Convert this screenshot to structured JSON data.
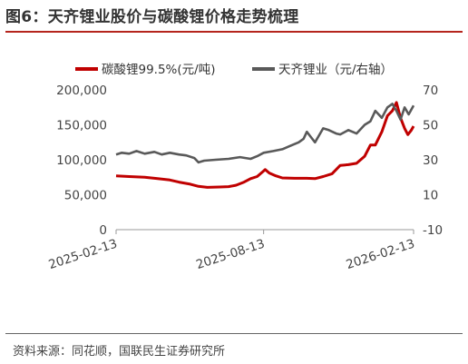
{
  "title": "图6：天齐锂业股价与碳酸锂价格走势梳理",
  "source": "资料来源：同花顺，国联民生证券研究所",
  "colors": {
    "series_red": "#c00000",
    "series_gray": "#595959",
    "accent_rule": "#b5251d"
  },
  "chart_data": {
    "type": "line",
    "x_ticks": [
      "2025-02-13",
      "2025-08-13",
      "2026-02-13"
    ],
    "x_range": [
      "2025-02-13",
      "2026-02-13"
    ],
    "y_left": {
      "ticks": [
        "200,000",
        "150,000",
        "100,000",
        "50,000",
        "0"
      ],
      "lim": [
        0,
        200000
      ]
    },
    "y_right": {
      "ticks": [
        "70",
        "50",
        "30",
        "10",
        "-10"
      ],
      "lim": [
        -10,
        70
      ]
    },
    "series": [
      {
        "name": "碳酸锂99.5%(元/吨)",
        "axis": "left",
        "color": "#c00000",
        "points": [
          [
            "2025-02-13",
            77000
          ],
          [
            "2025-03-01",
            76000
          ],
          [
            "2025-03-20",
            75000
          ],
          [
            "2025-04-05",
            73000
          ],
          [
            "2025-04-20",
            71000
          ],
          [
            "2025-05-01",
            68000
          ],
          [
            "2025-05-15",
            65000
          ],
          [
            "2025-05-25",
            62000
          ],
          [
            "2025-06-05",
            60500
          ],
          [
            "2025-06-20",
            61000
          ],
          [
            "2025-07-01",
            61500
          ],
          [
            "2025-07-10",
            63500
          ],
          [
            "2025-07-20",
            68000
          ],
          [
            "2025-07-28",
            73000
          ],
          [
            "2025-08-05",
            76000
          ],
          [
            "2025-08-12",
            83000
          ],
          [
            "2025-08-15",
            86000
          ],
          [
            "2025-08-20",
            81000
          ],
          [
            "2025-08-28",
            77000
          ],
          [
            "2025-09-05",
            74000
          ],
          [
            "2025-09-20",
            73500
          ],
          [
            "2025-10-05",
            73500
          ],
          [
            "2025-10-15",
            73000
          ],
          [
            "2025-10-25",
            76000
          ],
          [
            "2025-11-05",
            80000
          ],
          [
            "2025-11-15",
            92000
          ],
          [
            "2025-11-25",
            93000
          ],
          [
            "2025-12-05",
            95000
          ],
          [
            "2025-12-15",
            105000
          ],
          [
            "2025-12-22",
            121000
          ],
          [
            "2025-12-28",
            121000
          ],
          [
            "2026-01-05",
            140000
          ],
          [
            "2026-01-12",
            163000
          ],
          [
            "2026-01-18",
            170000
          ],
          [
            "2026-01-23",
            182000
          ],
          [
            "2026-01-28",
            160000
          ],
          [
            "2026-02-02",
            145000
          ],
          [
            "2026-02-06",
            136000
          ],
          [
            "2026-02-10",
            142000
          ],
          [
            "2026-02-13",
            148000
          ]
        ]
      },
      {
        "name": "天齐锂业（元/右轴）",
        "axis": "right",
        "color": "#595959",
        "points": [
          [
            "2025-02-13",
            33
          ],
          [
            "2025-02-20",
            34
          ],
          [
            "2025-03-01",
            33.5
          ],
          [
            "2025-03-10",
            35
          ],
          [
            "2025-03-20",
            33.5
          ],
          [
            "2025-04-01",
            34.5
          ],
          [
            "2025-04-10",
            33
          ],
          [
            "2025-04-20",
            34
          ],
          [
            "2025-05-01",
            33
          ],
          [
            "2025-05-10",
            32.5
          ],
          [
            "2025-05-20",
            31
          ],
          [
            "2025-05-25",
            28.5
          ],
          [
            "2025-06-01",
            29.5
          ],
          [
            "2025-06-15",
            30
          ],
          [
            "2025-07-01",
            30.5
          ],
          [
            "2025-07-15",
            31.5
          ],
          [
            "2025-07-28",
            30.5
          ],
          [
            "2025-08-05",
            32
          ],
          [
            "2025-08-13",
            34
          ],
          [
            "2025-08-25",
            35
          ],
          [
            "2025-09-05",
            36
          ],
          [
            "2025-09-15",
            38
          ],
          [
            "2025-09-25",
            40
          ],
          [
            "2025-10-01",
            42
          ],
          [
            "2025-10-05",
            46
          ],
          [
            "2025-10-10",
            43
          ],
          [
            "2025-10-15",
            40
          ],
          [
            "2025-10-20",
            44
          ],
          [
            "2025-10-25",
            48
          ],
          [
            "2025-11-01",
            47
          ],
          [
            "2025-11-10",
            45
          ],
          [
            "2025-11-15",
            44.5
          ],
          [
            "2025-11-25",
            47
          ],
          [
            "2025-12-05",
            45
          ],
          [
            "2025-12-15",
            50
          ],
          [
            "2025-12-22",
            52
          ],
          [
            "2025-12-28",
            58
          ],
          [
            "2026-01-05",
            54
          ],
          [
            "2026-01-12",
            60
          ],
          [
            "2026-01-18",
            62
          ],
          [
            "2026-01-23",
            58
          ],
          [
            "2026-01-28",
            53
          ],
          [
            "2026-02-02",
            60
          ],
          [
            "2026-02-07",
            56
          ],
          [
            "2026-02-13",
            61
          ]
        ]
      }
    ]
  }
}
